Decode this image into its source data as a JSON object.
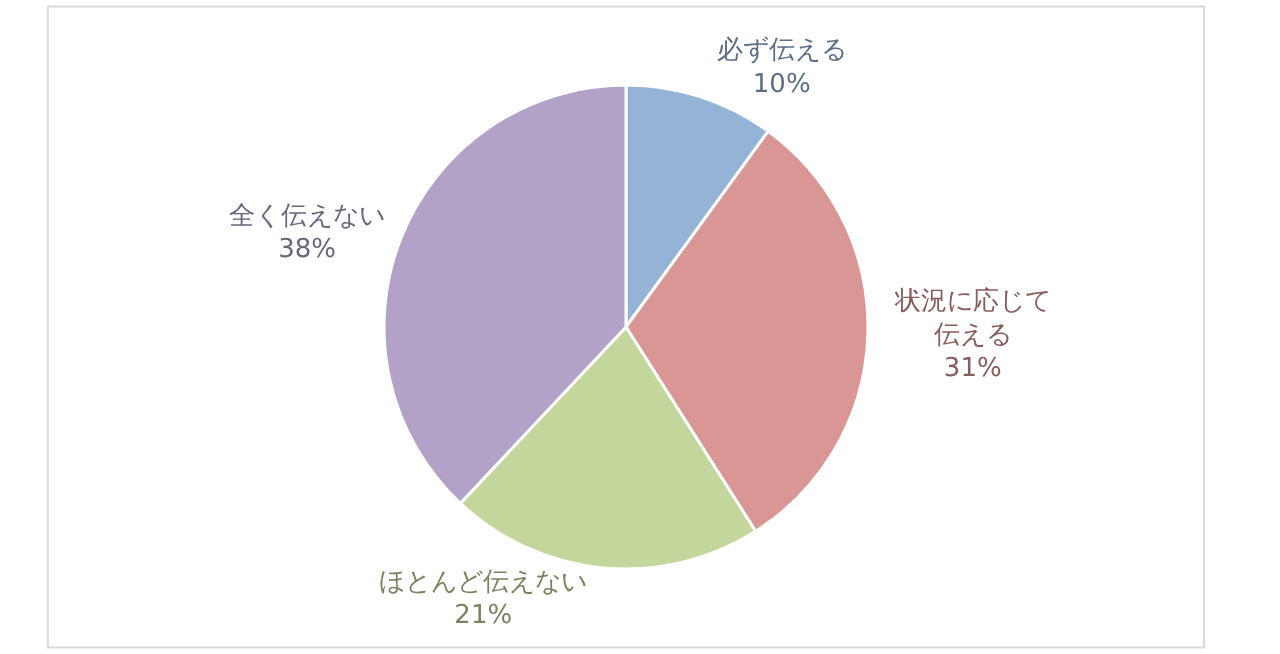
{
  "chart_data": {
    "type": "pie",
    "categories": [
      "必ず伝える",
      "状況に応じて伝える",
      "ほとんど伝えない",
      "全く伝えない"
    ],
    "values": [
      10,
      31,
      21,
      38
    ],
    "colors": [
      "#95b3d7",
      "#d99694",
      "#c3d69b",
      "#b3a2c7"
    ],
    "value_labels": [
      "10%",
      "31%",
      "21%",
      "38%"
    ],
    "legend": false
  }
}
